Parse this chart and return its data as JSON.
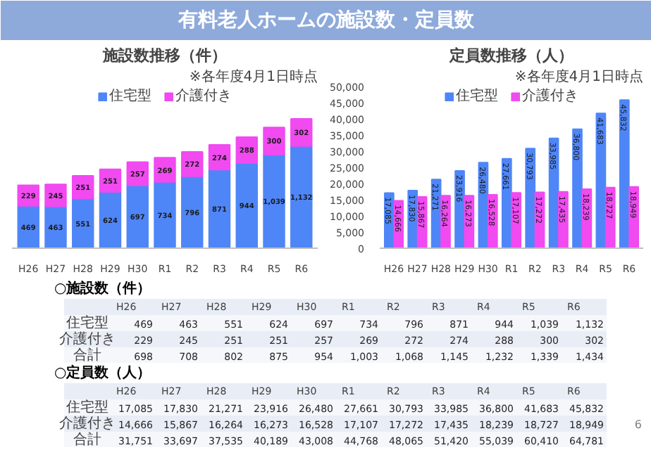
{
  "chart_data": [
    {
      "type": "other",
      "title": "有料老人ホームの施設数・定員数",
      "annotations": [
        "6"
      ]
    },
    {
      "type": "bar",
      "stacked": true,
      "title": "施設数推移（件）",
      "categories": [
        "H26",
        "H27",
        "H28",
        "H29",
        "H30",
        "R1",
        "R2",
        "R3",
        "R4",
        "R5",
        "R6"
      ],
      "series": [
        {
          "name": "住宅型",
          "color": "#4f86f7",
          "values": [
            469,
            463,
            551,
            624,
            697,
            734,
            796,
            871,
            944,
            1039,
            1132
          ],
          "value_labels": [
            "469",
            "463",
            "551",
            "624",
            "697",
            "734",
            "796",
            "871",
            "944",
            "1,039",
            "1,132"
          ]
        },
        {
          "name": "介護付き",
          "color": "#f04af0",
          "values": [
            229,
            245,
            251,
            251,
            257,
            269,
            272,
            274,
            288,
            300,
            302
          ],
          "value_labels": [
            "229",
            "245",
            "251",
            "251",
            "257",
            "269",
            "272",
            "274",
            "288",
            "300",
            "302"
          ]
        }
      ],
      "legend": "top",
      "tick_labels": "x",
      "annotations": [
        "※各年度4月1日時点"
      ]
    },
    {
      "type": "bar",
      "title": "定員数推移（人）",
      "categories": [
        "H26",
        "H27",
        "H28",
        "H29",
        "H30",
        "R1",
        "R2",
        "R3",
        "R4",
        "R5",
        "R6"
      ],
      "series": [
        {
          "name": "住宅型",
          "color": "#4f86f7",
          "values": [
            17085,
            17830,
            21271,
            23916,
            26480,
            27661,
            30793,
            33985,
            36800,
            41683,
            45832
          ],
          "value_labels": [
            "17,085",
            "17,830",
            "21,271",
            "23,916",
            "26,480",
            "27,661",
            "30,793",
            "33,985",
            "36,800",
            "41,683",
            "45,832"
          ]
        },
        {
          "name": "介護付き",
          "color": "#f04af0",
          "values": [
            14666,
            15867,
            16264,
            16273,
            16528,
            17107,
            17272,
            17435,
            18239,
            18727,
            18949
          ],
          "value_labels": [
            "14,666",
            "15,867",
            "16,264",
            "16,273",
            "16,528",
            "17,107",
            "17,272",
            "17,435",
            "18,239",
            "18,727",
            "18,949"
          ]
        }
      ],
      "ylim": [
        0,
        50000
      ],
      "yticks": [
        {
          "value": 0,
          "label": "0"
        },
        {
          "value": 5000,
          "label": "5,000"
        },
        {
          "value": 10000,
          "label": "10,000"
        },
        {
          "value": 15000,
          "label": "15,000"
        },
        {
          "value": 20000,
          "label": "20,000"
        },
        {
          "value": 25000,
          "label": "25,000"
        },
        {
          "value": 30000,
          "label": "30,000"
        },
        {
          "value": 35000,
          "label": "35,000"
        },
        {
          "value": 40000,
          "label": "40,000"
        },
        {
          "value": 45000,
          "label": "45,000"
        },
        {
          "value": 50000,
          "label": "50,000"
        }
      ],
      "legend": "top",
      "annotations": [
        "※各年度4月1日時点"
      ]
    },
    {
      "type": "other",
      "title": "○施設数（件）",
      "categories": [
        "H26",
        "H27",
        "H28",
        "H29",
        "H30",
        "R1",
        "R2",
        "R3",
        "R4",
        "R5",
        "R6"
      ],
      "series": [
        {
          "name": "住宅型",
          "color": "#f5f7fb",
          "values": [
            469,
            463,
            551,
            624,
            697,
            734,
            796,
            871,
            944,
            1039,
            1132
          ],
          "value_labels": [
            "469",
            "463",
            "551",
            "624",
            "697",
            "734",
            "796",
            "871",
            "944",
            "1,039",
            "1,132"
          ]
        },
        {
          "name": "介護付き",
          "color": "#e9edf6",
          "values": [
            229,
            245,
            251,
            251,
            257,
            269,
            272,
            274,
            288,
            300,
            302
          ],
          "value_labels": [
            "229",
            "245",
            "251",
            "251",
            "257",
            "269",
            "272",
            "274",
            "288",
            "300",
            "302"
          ]
        },
        {
          "name": "合計",
          "color": "#f5f7fb",
          "values": [
            698,
            708,
            802,
            875,
            954,
            1003,
            1068,
            1145,
            1232,
            1339,
            1434
          ],
          "value_labels": [
            "698",
            "708",
            "802",
            "875",
            "954",
            "1,003",
            "1,068",
            "1,145",
            "1,232",
            "1,339",
            "1,434"
          ]
        }
      ]
    },
    {
      "type": "other",
      "title": "○定員数（人）",
      "categories": [
        "H26",
        "H27",
        "H28",
        "H29",
        "H30",
        "R1",
        "R2",
        "R3",
        "R4",
        "R5",
        "R6"
      ],
      "series": [
        {
          "name": "住宅型",
          "color": "#f5f7fb",
          "values": [
            17085,
            17830,
            21271,
            23916,
            26480,
            27661,
            30793,
            33985,
            36800,
            41683,
            45832
          ],
          "value_labels": [
            "17,085",
            "17,830",
            "21,271",
            "23,916",
            "26,480",
            "27,661",
            "30,793",
            "33,985",
            "36,800",
            "41,683",
            "45,832"
          ]
        },
        {
          "name": "介護付き",
          "color": "#e9edf6",
          "values": [
            14666,
            15867,
            16264,
            16273,
            16528,
            17107,
            17272,
            17435,
            18239,
            18727,
            18949
          ],
          "value_labels": [
            "14,666",
            "15,867",
            "16,264",
            "16,273",
            "16,528",
            "17,107",
            "17,272",
            "17,435",
            "18,239",
            "18,727",
            "18,949"
          ]
        },
        {
          "name": "合計",
          "color": "#f5f7fb",
          "values": [
            31751,
            33697,
            37535,
            40189,
            43008,
            44768,
            48065,
            51420,
            55039,
            60410,
            64781
          ],
          "value_labels": [
            "31,751",
            "33,697",
            "37,535",
            "40,189",
            "43,008",
            "44,768",
            "48,065",
            "51,420",
            "55,039",
            "60,410",
            "64,781"
          ]
        }
      ]
    }
  ]
}
